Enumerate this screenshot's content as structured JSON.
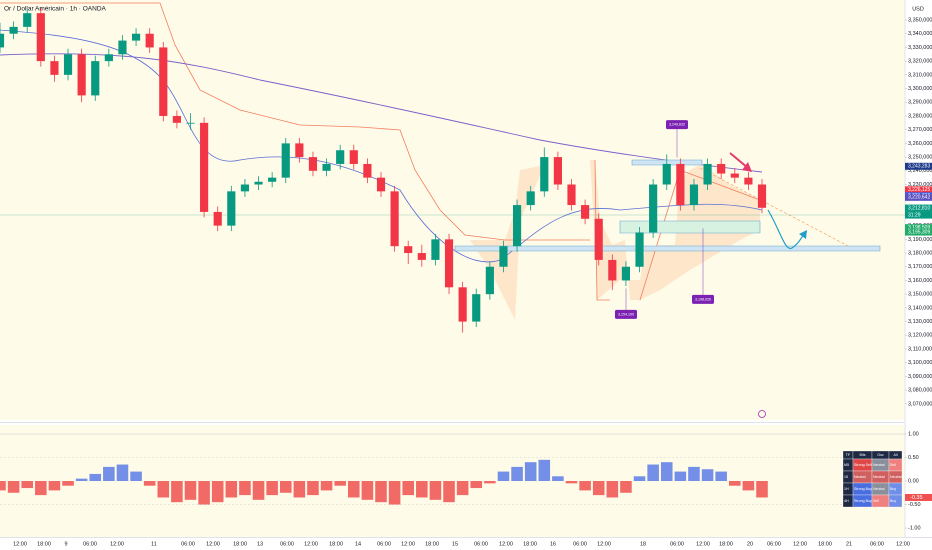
{
  "chart_data": {
    "type": "candlestick",
    "title": "Or / Dollar Américain · 1h · OANDA",
    "currency": "USD",
    "up_color": "#089981",
    "down_color": "#f23645",
    "ylim": [
      3058.2,
      3364.6
    ],
    "yticks": [
      {
        "value": 3350,
        "label": "3,350,000"
      },
      {
        "value": 3340,
        "label": "3,340,000"
      },
      {
        "value": 3330,
        "label": "3,330,000"
      },
      {
        "value": 3320,
        "label": "3,320,000"
      },
      {
        "value": 3310,
        "label": "3,310,000"
      },
      {
        "value": 3300,
        "label": "3,300,000"
      },
      {
        "value": 3290,
        "label": "3,290,000"
      },
      {
        "value": 3280,
        "label": "3,280,000"
      },
      {
        "value": 3270,
        "label": "3,270,000"
      },
      {
        "value": 3260,
        "label": "3,260,000"
      },
      {
        "value": 3250,
        "label": "3,250,000"
      },
      {
        "value": 3240,
        "label": "3,240,000"
      },
      {
        "value": 3230,
        "label": "3,230,000"
      },
      {
        "value": 3220,
        "label": "3,220,000"
      },
      {
        "value": 3210,
        "label": "3,210,000"
      },
      {
        "value": 3200,
        "label": "3,200,000"
      },
      {
        "value": 3190,
        "label": "3,190,000"
      },
      {
        "value": 3180,
        "label": "3,180,000"
      },
      {
        "value": 3170,
        "label": "3,170,000"
      },
      {
        "value": 3160,
        "label": "3,160,000"
      },
      {
        "value": 3150,
        "label": "3,150,000"
      },
      {
        "value": 3140,
        "label": "3,140,000"
      },
      {
        "value": 3130,
        "label": "3,130,000"
      },
      {
        "value": 3120,
        "label": "3,120,000"
      },
      {
        "value": 3110,
        "label": "3,110,000"
      },
      {
        "value": 3100,
        "label": "3,100,000"
      },
      {
        "value": 3090,
        "label": "3,090,000"
      },
      {
        "value": 3080,
        "label": "3,080,000"
      },
      {
        "value": 3070,
        "label": "3,070,000"
      }
    ],
    "xtick_labels": [
      "12:00",
      "18:00",
      "9",
      "06:00",
      "12:00",
      "11",
      "06:00",
      "12:00",
      "18:00",
      "13",
      "06:00",
      "12:00",
      "18:00",
      "14",
      "06:00",
      "12:00",
      "18:00",
      "15",
      "06:00",
      "12:00",
      "18:00",
      "16",
      "06:00",
      "12:00",
      "18",
      "06:00",
      "12:00",
      "18:00",
      "20",
      "06:00",
      "12:00",
      "18:00",
      "21",
      "06:00",
      "12:00"
    ],
    "open": [
      3330,
      3340,
      3345,
      3355,
      3320,
      3310,
      3325,
      3295,
      3320,
      3325,
      3335,
      3340,
      3330,
      3280,
      3275,
      3275,
      3210,
      3200,
      3225,
      3230,
      3232,
      3235,
      3260,
      3250,
      3240,
      3245,
      3255,
      3245,
      3235,
      3225,
      3185,
      3180,
      3175,
      3190,
      3155,
      3130,
      3150,
      3170,
      3185,
      3215,
      3225,
      3250,
      3230,
      3215,
      3205,
      3175,
      3160,
      3170,
      3195,
      3230,
      3245,
      3215,
      3230,
      3245,
      3238,
      3235,
      3230
    ],
    "high": [
      3348,
      3349,
      3358,
      3359,
      3324,
      3329,
      3329,
      3324,
      3329,
      3339,
      3344,
      3344,
      3334,
      3284,
      3282,
      3279,
      3214,
      3229,
      3234,
      3236,
      3239,
      3264,
      3264,
      3254,
      3249,
      3259,
      3259,
      3249,
      3239,
      3229,
      3189,
      3186,
      3194,
      3194,
      3159,
      3154,
      3174,
      3189,
      3219,
      3229,
      3257,
      3254,
      3234,
      3219,
      3209,
      3179,
      3174,
      3199,
      3234,
      3252,
      3249,
      3234,
      3249,
      3249,
      3242,
      3239,
      3234
    ],
    "low": [
      3326,
      3336,
      3341,
      3316,
      3305,
      3306,
      3290,
      3291,
      3316,
      3321,
      3331,
      3326,
      3276,
      3271,
      3270,
      3206,
      3196,
      3196,
      3221,
      3226,
      3228,
      3231,
      3246,
      3236,
      3236,
      3241,
      3241,
      3231,
      3221,
      3181,
      3172,
      3170,
      3171,
      3150,
      3122,
      3126,
      3146,
      3166,
      3181,
      3211,
      3221,
      3226,
      3211,
      3201,
      3171,
      3153,
      3156,
      3166,
      3191,
      3226,
      3211,
      3211,
      3226,
      3234,
      3231,
      3226,
      3209
    ],
    "close": [
      3340,
      3345,
      3355,
      3320,
      3310,
      3325,
      3295,
      3320,
      3325,
      3335,
      3340,
      3330,
      3280,
      3275,
      3275,
      3210,
      3200,
      3225,
      3230,
      3232,
      3235,
      3260,
      3250,
      3240,
      3245,
      3255,
      3245,
      3235,
      3225,
      3185,
      3180,
      3175,
      3190,
      3155,
      3130,
      3150,
      3170,
      3185,
      3215,
      3225,
      3250,
      3230,
      3215,
      3205,
      3175,
      3160,
      3170,
      3195,
      3230,
      3245,
      3215,
      3230,
      3245,
      3238,
      3235,
      3230,
      3213
    ],
    "price_labels": [
      {
        "value": 3243.283,
        "label": "3,243,283",
        "color": "#1e3a8a"
      },
      {
        "value": 3226.125,
        "label": "3,226,125",
        "color": "#f23645"
      },
      {
        "value": 3221.708,
        "label": "3,221,708",
        "color": "#2962ff"
      },
      {
        "value": 3220.642,
        "label": "3,220,642",
        "color": "#5b4fbf"
      },
      {
        "value": 3212.81,
        "label": "3,212,810",
        "color": "#089981"
      },
      {
        "value": 3198.509,
        "label": "3,198,509",
        "color": "#22ab6a"
      },
      {
        "value": 3195.309,
        "label": "3,195,309",
        "color": "#22ab6a"
      }
    ],
    "countdown": "31:29",
    "annotations": [
      {
        "value": 3249.632,
        "label": "3,249,632"
      },
      {
        "value": 3154.19,
        "label": "3,154,190"
      },
      {
        "value": 3198.026,
        "label": "3,198,026"
      }
    ],
    "oscillator": {
      "type": "bar",
      "pos_color": "#5b7be8",
      "neg_color": "#f0504f",
      "ylim": [
        -1.19,
        1.19
      ],
      "yticks": [
        {
          "value": 1,
          "label": "1.00"
        },
        {
          "value": 0.5,
          "label": "0.50"
        },
        {
          "value": 0,
          "label": "0.00"
        },
        {
          "value": -0.5,
          "label": "-0.50"
        },
        {
          "value": -1,
          "label": "-1.00"
        }
      ],
      "values": [
        -0.2,
        -0.25,
        -0.15,
        -0.3,
        -0.2,
        -0.1,
        0.05,
        0.15,
        0.3,
        0.35,
        0.2,
        -0.1,
        -0.35,
        -0.45,
        -0.4,
        -0.5,
        -0.45,
        -0.35,
        -0.3,
        -0.4,
        -0.3,
        -0.25,
        -0.35,
        -0.3,
        -0.2,
        -0.1,
        -0.35,
        -0.4,
        -0.45,
        -0.5,
        -0.3,
        -0.35,
        -0.4,
        -0.45,
        -0.3,
        -0.15,
        -0.05,
        0.2,
        0.3,
        0.4,
        0.45,
        0.1,
        -0.05,
        -0.2,
        -0.3,
        -0.35,
        -0.25,
        0.1,
        0.35,
        0.4,
        0.2,
        0.3,
        0.25,
        0.2,
        -0.1,
        -0.2,
        -0.35
      ],
      "last_value": {
        "value": -0.35,
        "label": "-0.35"
      }
    },
    "table": {
      "header": [
        "TF",
        "Bits",
        "Osc",
        "All"
      ],
      "rows": [
        {
          "cells": [
            "M5",
            "Strong Sell",
            "Neutral",
            "Sell"
          ],
          "colors": [
            "#1e2a44",
            "#e04848",
            "#8a8f9c",
            "#f08080"
          ]
        },
        {
          "cells": [
            "15",
            "Neutral",
            "Neutral",
            "Neutral"
          ],
          "colors": [
            "#1e2a44",
            "#d06060",
            "#d06060",
            "#d06060"
          ]
        },
        {
          "cells": [
            "1H",
            "Strong Buy",
            "Neutral",
            "Buy"
          ],
          "colors": [
            "#1e2a44",
            "#4a6ee0",
            "#8a8f9c",
            "#6f8ee8"
          ]
        },
        {
          "cells": [
            "4H",
            "Strong Buy",
            "Sell",
            "Buy"
          ],
          "colors": [
            "#1e2a44",
            "#4a6ee0",
            "#f08080",
            "#6f8ee8"
          ]
        }
      ]
    }
  }
}
